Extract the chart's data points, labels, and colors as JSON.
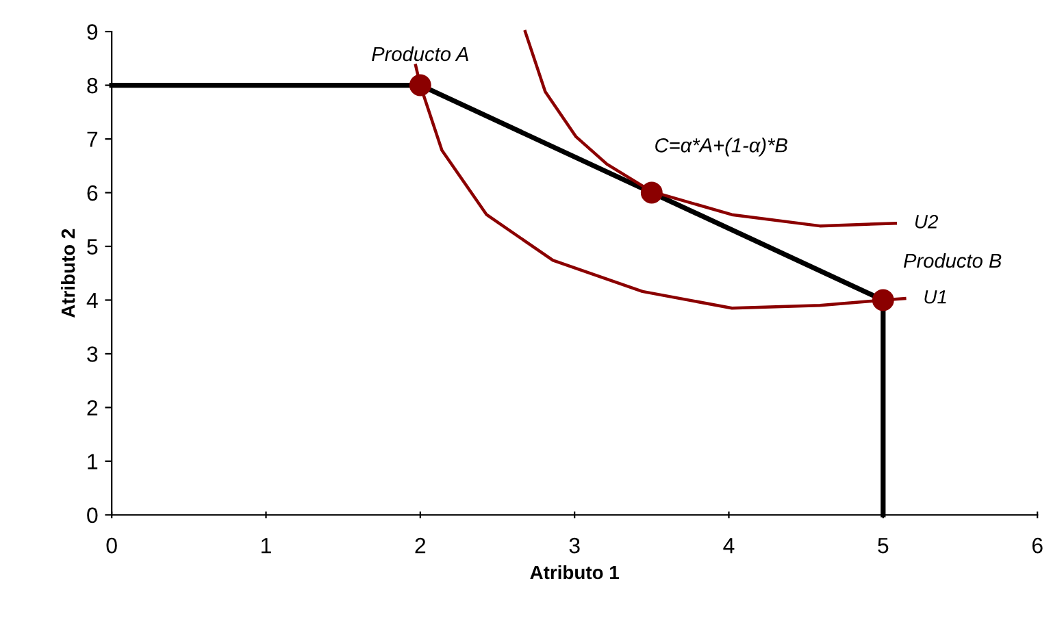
{
  "chart_data": {
    "type": "line",
    "xlabel": "Atributo 1",
    "ylabel": "Atributo 2",
    "xlim": [
      0,
      6
    ],
    "ylim": [
      0,
      9
    ],
    "xticks": [
      0,
      1,
      2,
      3,
      4,
      5,
      6
    ],
    "yticks": [
      0,
      1,
      2,
      3,
      4,
      5,
      6,
      7,
      8,
      9
    ],
    "grid": false,
    "legend": false,
    "series": [
      {
        "color": "#000000",
        "marker": "none",
        "x": [
          0,
          2,
          3.5,
          5,
          5
        ],
        "values": [
          8,
          8,
          6,
          4,
          0
        ]
      },
      {
        "name": "U1",
        "color": "#8b0000",
        "marker": "none",
        "x": [
          1.97,
          2,
          2.14,
          2.43,
          2.86,
          3.44,
          4.02,
          4.59,
          5,
          5.14
        ],
        "values": [
          8.37,
          8,
          6.79,
          5.59,
          4.74,
          4.16,
          3.85,
          3.9,
          4,
          4.03
        ]
      },
      {
        "name": "U2",
        "color": "#8b0000",
        "marker": "none",
        "x": [
          2.68,
          2.81,
          3.01,
          3.21,
          3.5,
          4.02,
          4.59,
          5.08
        ],
        "values": [
          9,
          7.88,
          7.04,
          6.53,
          6.02,
          5.59,
          5.38,
          5.43
        ]
      },
      {
        "type": "scatter",
        "color": "#8b0000",
        "marker": "circle",
        "x": [
          2,
          3.5,
          5
        ],
        "values": [
          8,
          6,
          4
        ]
      }
    ],
    "annotations": [
      {
        "text": "Producto A",
        "x": 2,
        "y": 8
      },
      {
        "text": "C=α*A+(1-α)*B",
        "x": 3.5,
        "y": 6
      },
      {
        "text": "Producto B",
        "x": 5,
        "y": 4
      }
    ]
  }
}
